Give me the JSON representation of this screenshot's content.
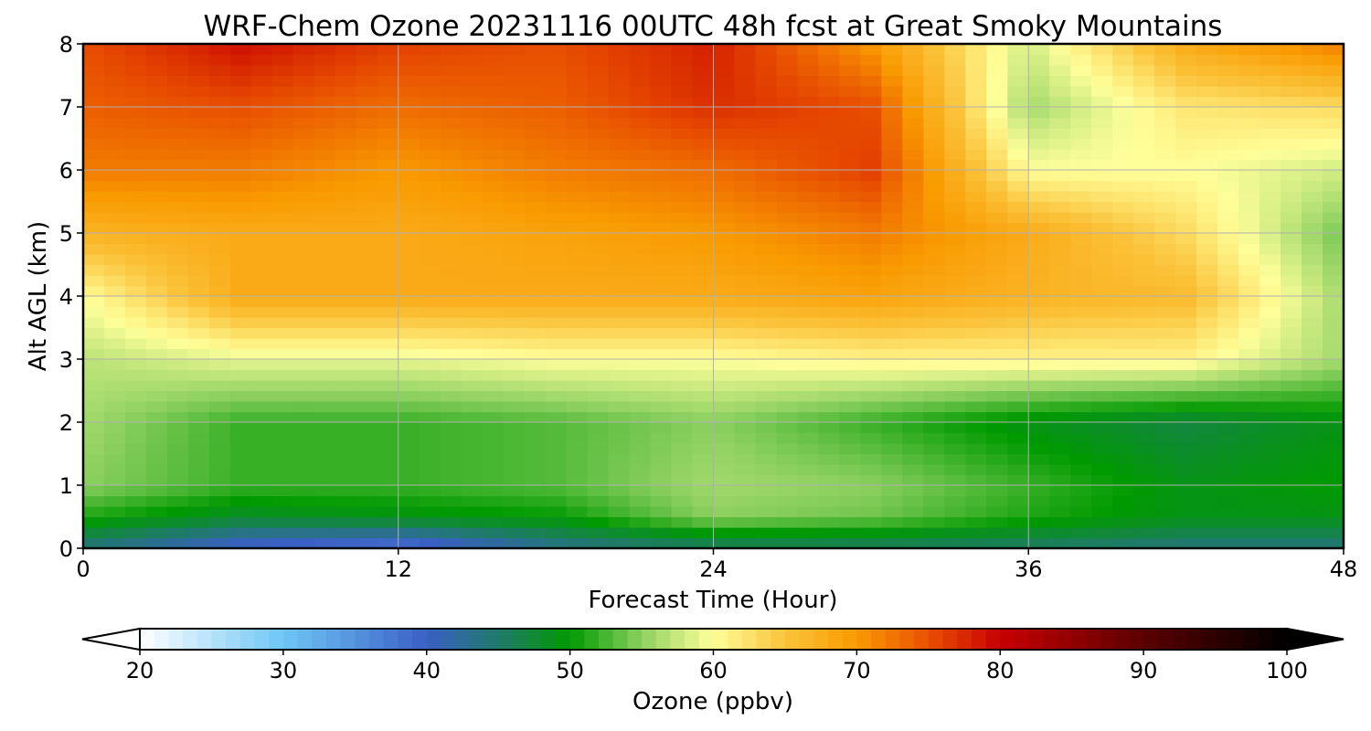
{
  "chart_data": {
    "type": "heatmap",
    "title": "WRF-Chem Ozone  20231116 00UTC 48h fcst at Great Smoky Mountains",
    "xlabel": "Forecast Time (Hour)",
    "ylabel": "Alt AGL (km)",
    "xlim": [
      0,
      48
    ],
    "ylim": [
      0,
      8
    ],
    "xticks": [
      0,
      12,
      24,
      36,
      48
    ],
    "yticks": [
      0,
      1,
      2,
      3,
      4,
      5,
      6,
      7,
      8
    ],
    "grid": true,
    "x": [
      0,
      6,
      12,
      18,
      24,
      30,
      36,
      42,
      48
    ],
    "y": [
      0,
      0.5,
      1,
      2,
      3,
      4,
      5,
      6,
      7,
      8
    ],
    "values": [
      [
        44,
        39,
        37,
        43,
        45,
        45,
        45,
        44,
        44
      ],
      [
        51,
        48,
        49,
        50,
        55,
        54,
        51,
        49,
        49
      ],
      [
        55,
        52,
        52,
        53,
        56,
        55,
        52,
        49,
        50
      ],
      [
        56,
        52,
        52,
        53,
        55,
        52,
        49,
        47,
        49
      ],
      [
        57,
        59,
        59,
        60,
        60,
        61,
        61,
        61,
        56
      ],
      [
        60,
        68,
        68,
        68,
        68,
        69,
        67,
        66,
        56
      ],
      [
        67,
        68,
        68,
        69,
        70,
        72,
        68,
        63,
        54
      ],
      [
        72,
        72,
        70,
        72,
        73,
        76,
        60,
        60,
        58
      ],
      [
        74,
        75,
        73,
        74,
        77,
        75,
        56,
        62,
        63
      ],
      [
        75,
        79,
        76,
        75,
        78,
        70,
        58,
        68,
        72
      ]
    ],
    "colorbar": {
      "label": "Ozone  (ppbv)",
      "min": 20,
      "max": 100,
      "ticks": [
        20,
        30,
        40,
        50,
        60,
        70,
        80,
        90,
        100
      ],
      "extend": "both",
      "orientation": "horizontal",
      "stops": [
        {
          "v": 20,
          "c": "#ffffff"
        },
        {
          "v": 30,
          "c": "#6ec6f5"
        },
        {
          "v": 40,
          "c": "#3a5fc5"
        },
        {
          "v": 45,
          "c": "#1f7a6a"
        },
        {
          "v": 50,
          "c": "#009a00"
        },
        {
          "v": 55,
          "c": "#8cd060"
        },
        {
          "v": 60,
          "c": "#ffff9a"
        },
        {
          "v": 65,
          "c": "#fbc33a"
        },
        {
          "v": 70,
          "c": "#f99a00"
        },
        {
          "v": 75,
          "c": "#e84f00"
        },
        {
          "v": 80,
          "c": "#c80000"
        },
        {
          "v": 90,
          "c": "#5a0000"
        },
        {
          "v": 100,
          "c": "#000000"
        }
      ]
    }
  }
}
